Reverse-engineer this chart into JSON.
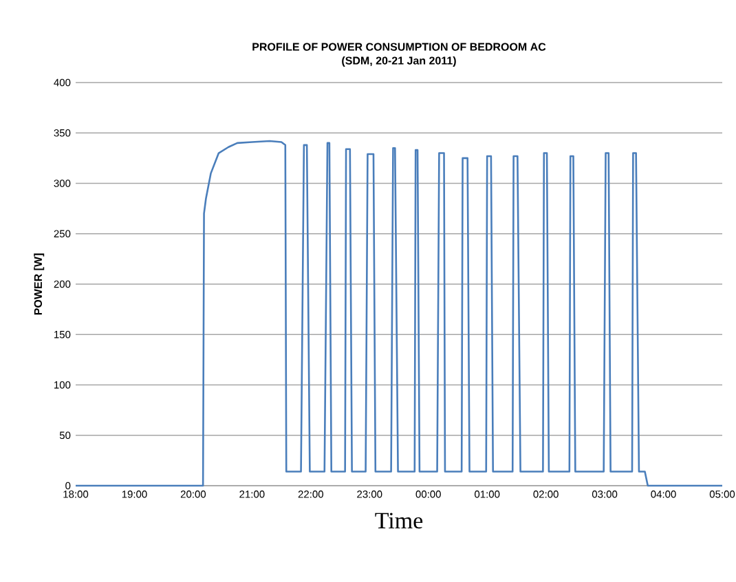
{
  "chart_data": {
    "type": "line",
    "title": "PROFILE OF POWER CONSUMPTION OF BEDROOM AC",
    "subtitle": "(SDM, 20-21 Jan 2011)",
    "xlabel": "Time",
    "ylabel": "POWER   [W]",
    "xlim": [
      "2011-01-20T18:00",
      "2011-01-21T05:00"
    ],
    "ylim": [
      0,
      400
    ],
    "xticks": [
      {
        "value": "2011-01-20T18:00",
        "label": "18:00"
      },
      {
        "value": "2011-01-20T19:00",
        "label": "19:00"
      },
      {
        "value": "2011-01-20T20:00",
        "label": "20:00"
      },
      {
        "value": "2011-01-20T21:00",
        "label": "21:00"
      },
      {
        "value": "2011-01-20T22:00",
        "label": "22:00"
      },
      {
        "value": "2011-01-20T23:00",
        "label": "23:00"
      },
      {
        "value": "2011-01-21T00:00",
        "label": "00:00"
      },
      {
        "value": "2011-01-21T01:00",
        "label": "01:00"
      },
      {
        "value": "2011-01-21T02:00",
        "label": "02:00"
      },
      {
        "value": "2011-01-21T03:00",
        "label": "03:00"
      },
      {
        "value": "2011-01-21T04:00",
        "label": "04:00"
      },
      {
        "value": "2011-01-21T05:00",
        "label": "05:00"
      }
    ],
    "yticks": [
      0,
      50,
      100,
      150,
      200,
      250,
      300,
      350,
      400
    ],
    "grid": "y",
    "marker": "none",
    "line_style": "solid",
    "series": [
      {
        "color": "#4a7ebb",
        "x": [
          "2011-01-20T18:00",
          "2011-01-20T20:10",
          "2011-01-20T20:11",
          "2011-01-20T20:13",
          "2011-01-20T20:18",
          "2011-01-20T20:26",
          "2011-01-20T20:36",
          "2011-01-20T20:45",
          "2011-01-20T21:00",
          "2011-01-20T21:18",
          "2011-01-20T21:30",
          "2011-01-20T21:34",
          "2011-01-20T21:35",
          "2011-01-20T21:50",
          "2011-01-20T21:53",
          "2011-01-20T21:56",
          "2011-01-20T21:59",
          "2011-01-20T22:14",
          "2011-01-20T22:17",
          "2011-01-20T22:19",
          "2011-01-20T22:21",
          "2011-01-20T22:35",
          "2011-01-20T22:36",
          "2011-01-20T22:40",
          "2011-01-20T22:42",
          "2011-01-20T22:56",
          "2011-01-20T22:58",
          "2011-01-20T23:04",
          "2011-01-20T23:06",
          "2011-01-20T23:22",
          "2011-01-20T23:24",
          "2011-01-20T23:26",
          "2011-01-20T23:29",
          "2011-01-20T23:46",
          "2011-01-20T23:47",
          "2011-01-20T23:49",
          "2011-01-20T23:51",
          "2011-01-21T00:09",
          "2011-01-21T00:11",
          "2011-01-21T00:16",
          "2011-01-21T00:17",
          "2011-01-21T00:34",
          "2011-01-21T00:35",
          "2011-01-21T00:40",
          "2011-01-21T00:42",
          "2011-01-21T00:59",
          "2011-01-21T01:00",
          "2011-01-21T01:04",
          "2011-01-21T01:06",
          "2011-01-21T01:26",
          "2011-01-21T01:27",
          "2011-01-21T01:31",
          "2011-01-21T01:34",
          "2011-01-21T01:57",
          "2011-01-21T01:58",
          "2011-01-21T02:01",
          "2011-01-21T02:03",
          "2011-01-21T02:24",
          "2011-01-21T02:25",
          "2011-01-21T02:28",
          "2011-01-21T02:30",
          "2011-01-21T02:59",
          "2011-01-21T03:01",
          "2011-01-21T03:04",
          "2011-01-21T03:06",
          "2011-01-21T03:28",
          "2011-01-21T03:29",
          "2011-01-21T03:32",
          "2011-01-21T03:35",
          "2011-01-21T03:41",
          "2011-01-21T03:44",
          "2011-01-21T05:00"
        ],
        "values": [
          0,
          0,
          270,
          285,
          310,
          330,
          336,
          340,
          341,
          342,
          341,
          338,
          14,
          14,
          338,
          338,
          14,
          14,
          340,
          340,
          14,
          14,
          334,
          334,
          14,
          14,
          329,
          329,
          14,
          14,
          335,
          335,
          14,
          14,
          333,
          333,
          14,
          14,
          330,
          330,
          14,
          14,
          325,
          325,
          14,
          14,
          327,
          327,
          14,
          14,
          327,
          327,
          14,
          14,
          330,
          330,
          14,
          14,
          327,
          327,
          14,
          14,
          330,
          330,
          14,
          14,
          330,
          330,
          14,
          14,
          0,
          0
        ]
      }
    ]
  }
}
